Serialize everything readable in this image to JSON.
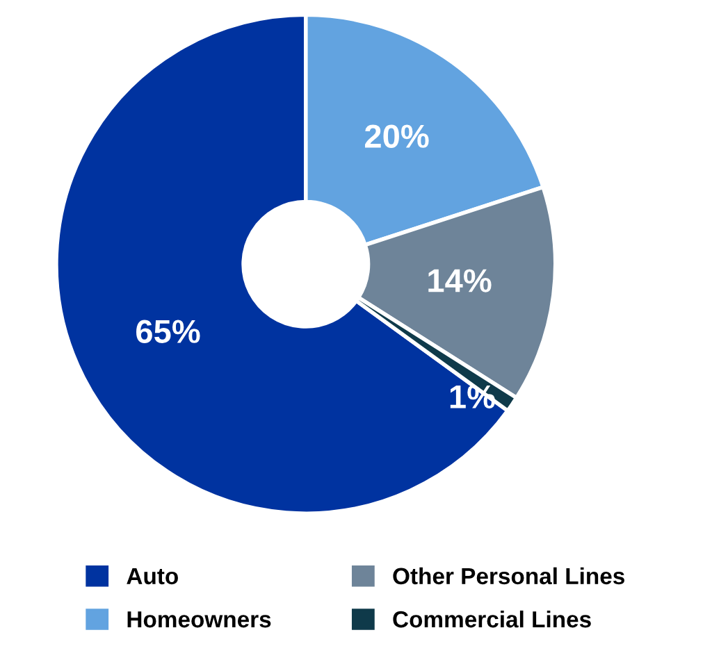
{
  "chart_data": {
    "type": "donut",
    "categories": [
      "Auto",
      "Homeowners",
      "Other Personal Lines",
      "Commercial Lines"
    ],
    "values": [
      65,
      20,
      14,
      1
    ],
    "colors": [
      "#0033a0",
      "#62a3e0",
      "#6e8499",
      "#0f3a4a"
    ],
    "value_labels": [
      "65%",
      "20%",
      "14%",
      "1%"
    ],
    "legend": "bottom"
  }
}
